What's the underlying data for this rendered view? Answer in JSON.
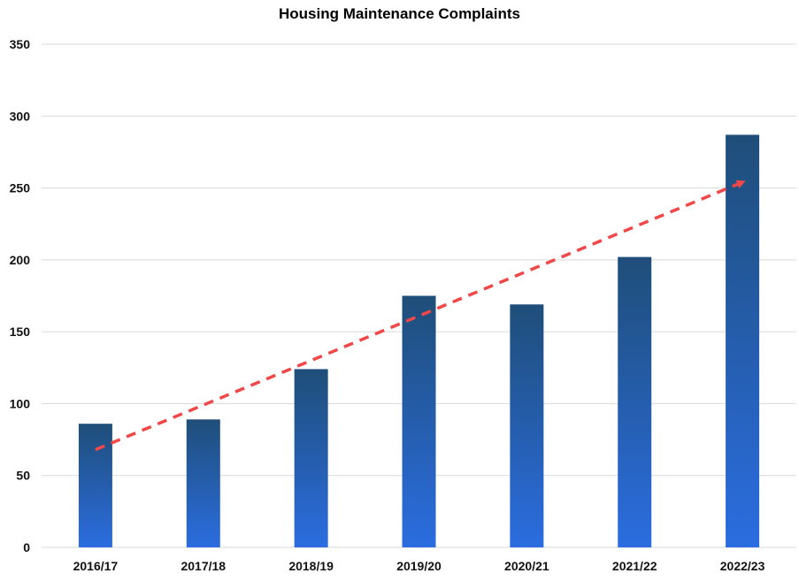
{
  "chart_data": {
    "type": "bar",
    "title": "Housing Maintenance Complaints",
    "xlabel": "",
    "ylabel": "",
    "categories": [
      "2016/17",
      "2017/18",
      "2018/19",
      "2019/20",
      "2020/21",
      "2021/22",
      "2022/23"
    ],
    "values": [
      86,
      89,
      124,
      175,
      169,
      202,
      287
    ],
    "ylim": [
      0,
      350
    ],
    "yticks": [
      0,
      50,
      100,
      150,
      200,
      250,
      300,
      350
    ],
    "grid": true,
    "legend": "none",
    "trendline": {
      "style": "dashed-arrow",
      "start_value": 68,
      "end_value": 254,
      "color": "#f04848"
    },
    "colors": {
      "bar_top": "#1f4e79",
      "bar_bottom": "#2b6de0",
      "grid": "#d9d9d9"
    }
  }
}
